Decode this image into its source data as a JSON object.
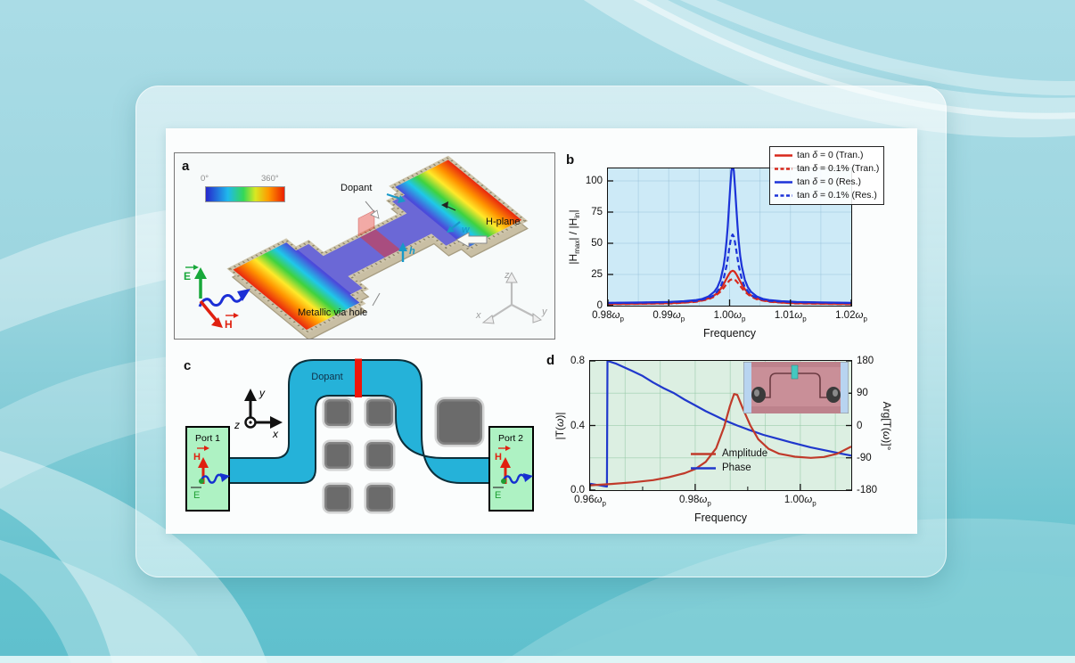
{
  "slide": {
    "bg_top": "#aadce6",
    "bg_bottom": "#5fc0cd",
    "card_tint": "#eef9fa"
  },
  "figure": {
    "panel_a": {
      "label": "a",
      "colorbar": {
        "min": "0°",
        "max": "360°"
      },
      "labels": {
        "dopant": "Dopant",
        "h_plane": "H-plane",
        "via": "Metallic via hole",
        "height": "h",
        "width": "w",
        "e_field": "E",
        "h_field": "H",
        "axis_x": "x",
        "axis_y": "y",
        "axis_z": "z"
      }
    },
    "panel_c": {
      "label": "c",
      "dopant": "Dopant",
      "port1": "Port 1",
      "port2": "Port 2",
      "h_field": "H",
      "e_field": "E",
      "axis_x": "x",
      "axis_y": "y",
      "axis_z": "z",
      "colors": {
        "channel": "#25b2d9",
        "port": "#aef2c3",
        "dopant": "#ee1509",
        "post": "#6b6b6b"
      }
    }
  },
  "chart_data": [
    {
      "id": "b",
      "type": "line",
      "panel_label": "b",
      "xlabel": "Frequency",
      "ylabel": "|H_max| / |H_in|",
      "xlim": [
        0.98,
        1.02
      ],
      "ylim": [
        0,
        110
      ],
      "plot_bg": "#cdeaf7",
      "grid": {
        "x_start": 0.985,
        "x_step": 0.005,
        "y_step": 25,
        "color": "rgba(140,185,210,0.40)"
      },
      "xticks": [
        {
          "v": 0.98,
          "t": "0.98ωp"
        },
        {
          "v": 0.99,
          "t": "0.99ωp"
        },
        {
          "v": 1.0,
          "t": "1.00ωp"
        },
        {
          "v": 1.01,
          "t": "1.01ωp"
        },
        {
          "v": 1.02,
          "t": "1.02ωp"
        }
      ],
      "yticks": [
        {
          "v": 0,
          "t": "0"
        },
        {
          "v": 25,
          "t": "25"
        },
        {
          "v": 50,
          "t": "50"
        },
        {
          "v": 75,
          "t": "75"
        },
        {
          "v": 100,
          "t": "100"
        }
      ],
      "legend_position": "top-right",
      "legend": [
        {
          "label": "tan δ = 0 (Tran.)",
          "color": "#d8281c",
          "dash": false
        },
        {
          "label": "tan δ = 0.1% (Tran.)",
          "color": "#d8281c",
          "dash": true
        },
        {
          "label": "tan δ = 0 (Res.)",
          "color": "#1c33d8",
          "dash": false
        },
        {
          "label": "tan δ = 0.1% (Res.)",
          "color": "#1c33d8",
          "dash": true
        }
      ],
      "series": [
        {
          "name": "tan δ = 0.1% (Tran.)",
          "color": "#d8281c",
          "dash": true,
          "axis": "left",
          "points": [
            [
              0.98,
              1.2
            ],
            [
              0.9905,
              1.8
            ],
            [
              0.9945,
              3.05
            ],
            [
              0.9965,
              5.1
            ],
            [
              0.9975,
              7.3
            ],
            [
              0.9985,
              11.25
            ],
            [
              0.999,
              14.1
            ],
            [
              0.9995,
              17.4
            ],
            [
              1.0,
              20.3
            ],
            [
              1.0005,
              21.5
            ],
            [
              1.001,
              20.3
            ],
            [
              1.0015,
              17.4
            ],
            [
              1.002,
              14.1
            ],
            [
              1.0025,
              11.25
            ],
            [
              1.0035,
              7.3
            ],
            [
              1.0045,
              5.1
            ],
            [
              1.0065,
              3.05
            ],
            [
              1.0105,
              1.8
            ],
            [
              1.02,
              1.2
            ]
          ]
        },
        {
          "name": "tan δ = 0 (Tran.)",
          "color": "#d8281c",
          "dash": false,
          "axis": "left",
          "points": [
            [
              0.98,
              1.4
            ],
            [
              0.9855,
              1.6
            ],
            [
              0.9905,
              2.05
            ],
            [
              0.9925,
              2.5
            ],
            [
              0.9945,
              3.4
            ],
            [
              0.9955,
              4.3
            ],
            [
              0.9965,
              5.7
            ],
            [
              0.9975,
              8.3
            ],
            [
              0.998,
              10.3
            ],
            [
              0.9985,
              13.2
            ],
            [
              0.999,
              17.1
            ],
            [
              0.9995,
              21.7
            ],
            [
              0.9999,
              25.3
            ],
            [
              1.0002,
              27.3
            ],
            [
              1.0005,
              28
            ],
            [
              1.0008,
              27.3
            ],
            [
              1.0011,
              25.3
            ],
            [
              1.0015,
              21.7
            ],
            [
              1.002,
              17.1
            ],
            [
              1.0025,
              13.2
            ],
            [
              1.003,
              10.3
            ],
            [
              1.0035,
              8.3
            ],
            [
              1.0045,
              5.7
            ],
            [
              1.0055,
              4.3
            ],
            [
              1.0065,
              3.4
            ],
            [
              1.0085,
              2.5
            ],
            [
              1.0105,
              2.05
            ],
            [
              1.0155,
              1.6
            ],
            [
              1.02,
              1.4
            ]
          ]
        },
        {
          "name": "tan δ = 0.1% (Res.)",
          "color": "#1c33d8",
          "dash": true,
          "axis": "left",
          "points": [
            [
              0.98,
              2.1
            ],
            [
              0.99,
              2.7
            ],
            [
              0.9945,
              3.8
            ],
            [
              0.9965,
              6.1
            ],
            [
              0.9975,
              8.5
            ],
            [
              0.9985,
              14.8
            ],
            [
              0.999,
              21.2
            ],
            [
              0.9995,
              32
            ],
            [
              0.9997,
              38
            ],
            [
              0.9999,
              44.4
            ],
            [
              1.0001,
              50.6
            ],
            [
              1.0003,
              55.2
            ],
            [
              1.0005,
              57
            ],
            [
              1.0007,
              55.2
            ],
            [
              1.0009,
              50.6
            ],
            [
              1.0011,
              44.4
            ],
            [
              1.0013,
              38
            ],
            [
              1.0015,
              32
            ],
            [
              1.002,
              21.2
            ],
            [
              1.0025,
              14.8
            ],
            [
              1.0035,
              8.5
            ],
            [
              1.0045,
              6.1
            ],
            [
              1.0065,
              3.8
            ],
            [
              1.011,
              2.7
            ],
            [
              1.02,
              2.1
            ]
          ]
        },
        {
          "name": "tan δ = 0 (Res.)",
          "color": "#1c33d8",
          "dash": false,
          "axis": "left",
          "points": [
            [
              0.98,
              2.2
            ],
            [
              0.986,
              2.6
            ],
            [
              0.99,
              3.0
            ],
            [
              0.9925,
              3.6
            ],
            [
              0.9945,
              4.5
            ],
            [
              0.9955,
              5.4
            ],
            [
              0.9965,
              7.3
            ],
            [
              0.9975,
              11.2
            ],
            [
              0.998,
              14.8
            ],
            [
              0.9985,
              20.7
            ],
            [
              0.999,
              31.4
            ],
            [
              0.99925,
              39.9
            ],
            [
              0.9995,
              51.8
            ],
            [
              0.9997,
              64
            ],
            [
              0.9999,
              79
            ],
            [
              1.0001,
              94.7
            ],
            [
              1.0003,
              107.8
            ],
            [
              1.0005,
              113
            ],
            [
              1.0007,
              107.8
            ],
            [
              1.0009,
              94.7
            ],
            [
              1.0011,
              79
            ],
            [
              1.0013,
              64
            ],
            [
              1.0015,
              51.8
            ],
            [
              1.00175,
              39.9
            ],
            [
              1.002,
              31.4
            ],
            [
              1.0025,
              20.7
            ],
            [
              1.003,
              14.8
            ],
            [
              1.0035,
              11.2
            ],
            [
              1.0045,
              7.3
            ],
            [
              1.0055,
              5.4
            ],
            [
              1.0065,
              4.5
            ],
            [
              1.0085,
              3.6
            ],
            [
              1.011,
              3.0
            ],
            [
              1.015,
              2.6
            ],
            [
              1.02,
              2.2
            ]
          ]
        }
      ]
    },
    {
      "id": "d",
      "type": "line",
      "panel_label": "d",
      "xlabel": "Frequency",
      "ylabel": "|T(ω)|",
      "rlabel": "Arg[T(ω)]°",
      "xlim": [
        0.96,
        1.0097
      ],
      "ylim": [
        0,
        0.8
      ],
      "rlim": [
        -180,
        180
      ],
      "plot_bg": "#dcefe2",
      "grid": {
        "x_start": 0.96667,
        "x_step": 0.006667,
        "y_step": 0.2,
        "color": "rgba(150,200,165,0.55)"
      },
      "xticks": [
        {
          "v": 0.96,
          "t": "0.96ωp"
        },
        {
          "v": 0.98,
          "t": "0.98ωp"
        },
        {
          "v": 1.0,
          "t": "1.00ωp"
        }
      ],
      "xminor": [
        0.97,
        0.99
      ],
      "yticks": [
        {
          "v": 0.0,
          "t": "0.0"
        },
        {
          "v": 0.4,
          "t": "0.4"
        },
        {
          "v": 0.8,
          "t": "0.8"
        }
      ],
      "rticks": [
        {
          "v": -180,
          "t": "-180"
        },
        {
          "v": -90,
          "t": "-90"
        },
        {
          "v": 0,
          "t": "0"
        },
        {
          "v": 90,
          "t": "90"
        },
        {
          "v": 180,
          "t": "180"
        }
      ],
      "legend_position": "inside-bottom",
      "legend": [
        {
          "label": "Amplitude",
          "color": "#c03a2a",
          "dash": false
        },
        {
          "label": "Phase",
          "color": "#2038cc",
          "dash": false
        }
      ],
      "series": [
        {
          "name": "Phase",
          "color": "#2038cc",
          "dash": false,
          "axis": "right",
          "points": [
            [
              0.96,
              -162
            ],
            [
              0.962,
              -167
            ],
            [
              0.9632,
              -170
            ],
            [
              0.9633,
              180
            ],
            [
              0.965,
              172
            ],
            [
              0.968,
              152
            ],
            [
              0.97,
              138
            ],
            [
              0.972,
              120
            ],
            [
              0.974,
              104
            ],
            [
              0.976,
              90
            ],
            [
              0.978,
              72
            ],
            [
              0.98,
              56
            ],
            [
              0.982,
              40
            ],
            [
              0.984,
              26
            ],
            [
              0.986,
              12
            ],
            [
              0.988,
              0
            ],
            [
              0.99,
              -11
            ],
            [
              0.993,
              -26
            ],
            [
              0.996,
              -38
            ],
            [
              0.999,
              -50
            ],
            [
              1.002,
              -61
            ],
            [
              1.005,
              -70
            ],
            [
              1.008,
              -79
            ],
            [
              1.0097,
              -84
            ]
          ]
        },
        {
          "name": "Amplitude",
          "color": "#c03a2a",
          "dash": false,
          "axis": "left",
          "points": [
            [
              0.96,
              0.03
            ],
            [
              0.964,
              0.038
            ],
            [
              0.968,
              0.048
            ],
            [
              0.972,
              0.062
            ],
            [
              0.975,
              0.08
            ],
            [
              0.978,
              0.105
            ],
            [
              0.98,
              0.13
            ],
            [
              0.982,
              0.175
            ],
            [
              0.984,
              0.26
            ],
            [
              0.9855,
              0.39
            ],
            [
              0.9866,
              0.52
            ],
            [
              0.9874,
              0.595
            ],
            [
              0.988,
              0.59
            ],
            [
              0.989,
              0.51
            ],
            [
              0.9905,
              0.4
            ],
            [
              0.992,
              0.315
            ],
            [
              0.994,
              0.255
            ],
            [
              0.996,
              0.225
            ],
            [
              0.999,
              0.207
            ],
            [
              1.002,
              0.2
            ],
            [
              1.0045,
              0.205
            ],
            [
              1.007,
              0.225
            ],
            [
              1.0097,
              0.27
            ]
          ]
        }
      ],
      "inset": {
        "content": "fabricated device photo",
        "board_color": "#c98f98",
        "side_color": "#b8d4f0",
        "sample_color": "#45c8c0"
      }
    }
  ]
}
